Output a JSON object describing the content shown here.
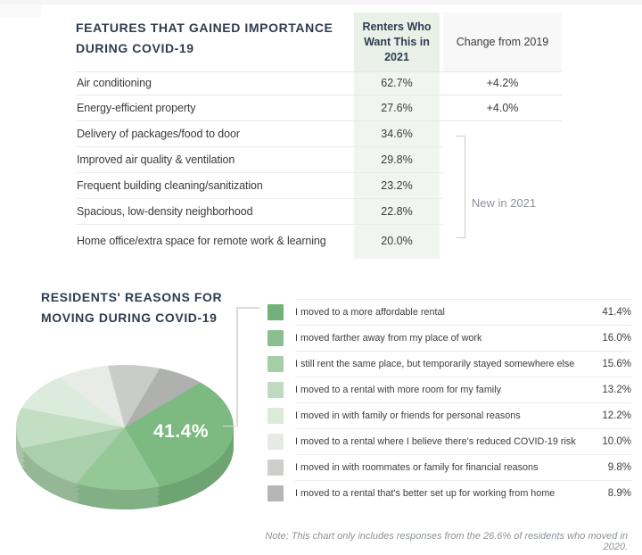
{
  "chart_data": [
    {
      "type": "table",
      "title": "FEATURES THAT GAINED IMPORTANCE DURING COVID-19",
      "header": {
        "renters": "Renters Who Want This in 2021",
        "change": "Change from 2019"
      },
      "rows": [
        {
          "label": "Air conditioning",
          "value": "62.7%",
          "change": "+4.2%"
        },
        {
          "label": "Energy-efficient property",
          "value": "27.6%",
          "change": "+4.0%"
        },
        {
          "label": "Delivery of packages/food to door",
          "value": "34.6%",
          "change": ""
        },
        {
          "label": "Improved air quality & ventilation",
          "value": "29.8%",
          "change": ""
        },
        {
          "label": "Frequent building cleaning/sanitization",
          "value": "23.2%",
          "change": ""
        },
        {
          "label": "Spacious, low-density neighborhood",
          "value": "22.8%",
          "change": ""
        },
        {
          "label": "Home office/extra space for remote work & learning",
          "value": "20.0%",
          "change": ""
        }
      ],
      "bracket_label": "New in 2021"
    },
    {
      "type": "pie",
      "style": "3d",
      "title": "RESIDENTS' REASONS FOR MOVING DURING COVID-19",
      "labels": [
        "I moved to a more affordable rental",
        "I moved farther away from my place of work",
        "I still rent the same place, but temporarily stayed somewhere else",
        "I moved to a rental with more room for my family",
        "I moved in with family or friends for personal reasons",
        "I moved to a rental where I believe there's reduced COVID-19 risk",
        "I moved in with roommates or family for financial reasons",
        "I moved to a rental that's better set up for working from home"
      ],
      "values": [
        41.4,
        16.0,
        15.6,
        13.2,
        12.2,
        10.0,
        9.8,
        8.9
      ],
      "value_labels": [
        "41.4%",
        "16.0%",
        "15.6%",
        "13.2%",
        "12.2%",
        "10.0%",
        "9.8%",
        "8.9%"
      ],
      "callout_label": "41.4%",
      "start_angle_deg": 44,
      "legend_position": "right",
      "colors": {
        "pie": [
          "#7cba81",
          "#94c897",
          "#a9d0ab",
          "#c2dec3",
          "#dcecdc",
          "#e9ebe9",
          "#c9ccc9",
          "#aeb1ae"
        ],
        "legend": [
          "#74b17a",
          "#8cbf90",
          "#a5cda7",
          "#bedabf",
          "#dbeadb",
          "#e7e9e7",
          "#cccfcc",
          "#b4b7b4"
        ]
      },
      "note": "Note: This chart only includes responses from the 26.6% of residents who moved in 2020."
    }
  ]
}
